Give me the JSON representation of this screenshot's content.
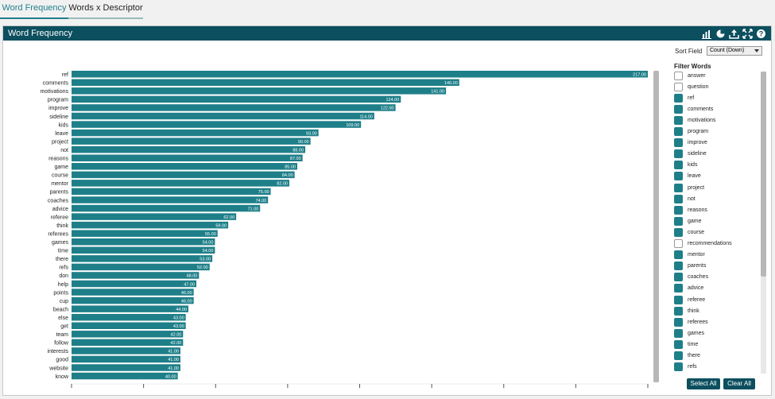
{
  "tabs": [
    {
      "label": "Word Frequency",
      "active": true
    },
    {
      "label": "Words x Descriptor",
      "active": false
    }
  ],
  "panel": {
    "title": "Word Frequency",
    "icons": [
      "bar-chart-icon",
      "pie-chart-icon",
      "export-icon",
      "expand-icon",
      "help-icon"
    ]
  },
  "sort": {
    "label": "Sort Field",
    "value": "Count (Down)"
  },
  "filter": {
    "title": "Filter Words",
    "items": [
      {
        "label": "answer",
        "checked": false
      },
      {
        "label": "question",
        "checked": false
      },
      {
        "label": "ref",
        "checked": true
      },
      {
        "label": "comments",
        "checked": true
      },
      {
        "label": "motivations",
        "checked": true
      },
      {
        "label": "program",
        "checked": true
      },
      {
        "label": "improve",
        "checked": true
      },
      {
        "label": "sideline",
        "checked": true
      },
      {
        "label": "kids",
        "checked": true
      },
      {
        "label": "leave",
        "checked": true
      },
      {
        "label": "project",
        "checked": true
      },
      {
        "label": "not",
        "checked": true
      },
      {
        "label": "reasons",
        "checked": true
      },
      {
        "label": "game",
        "checked": true
      },
      {
        "label": "course",
        "checked": true
      },
      {
        "label": "recommendations",
        "checked": false
      },
      {
        "label": "mentor",
        "checked": true
      },
      {
        "label": "parents",
        "checked": true
      },
      {
        "label": "coaches",
        "checked": true
      },
      {
        "label": "advice",
        "checked": true
      },
      {
        "label": "referee",
        "checked": true
      },
      {
        "label": "think",
        "checked": true
      },
      {
        "label": "referees",
        "checked": true
      },
      {
        "label": "games",
        "checked": true
      },
      {
        "label": "time",
        "checked": true
      },
      {
        "label": "there",
        "checked": true
      },
      {
        "label": "refs",
        "checked": true
      }
    ],
    "select_all": "Select All",
    "clear_all": "Clear All"
  },
  "colors": {
    "bar": "#1e7f89",
    "header": "#0c4f5f",
    "accent": "#1f7f8c"
  },
  "chart_data": {
    "type": "bar",
    "orientation": "horizontal",
    "title": "",
    "xlabel": "",
    "ylabel": "",
    "xlim": [
      0,
      217
    ],
    "categories": [
      "ref",
      "comments",
      "motivations",
      "program",
      "improve",
      "sideline",
      "kids",
      "leave",
      "project",
      "not",
      "reasons",
      "game",
      "course",
      "mentor",
      "parents",
      "coaches",
      "advice",
      "referee",
      "think",
      "referees",
      "games",
      "time",
      "there",
      "refs",
      "don",
      "help",
      "points",
      "cup",
      "beach",
      "else",
      "get",
      "team",
      "follow",
      "interests",
      "good",
      "website",
      "know"
    ],
    "values": [
      217,
      146,
      141,
      124,
      122,
      114,
      109,
      93,
      90,
      88,
      87,
      85,
      84,
      82,
      75,
      74,
      71,
      62,
      59,
      55,
      54,
      54,
      53,
      52,
      48,
      47,
      46,
      46,
      44,
      43,
      43,
      42,
      42,
      41,
      41,
      41,
      40
    ],
    "value_labels": [
      "217.00",
      "146.00",
      "141.00",
      "124.00",
      "122.00",
      "114.00",
      "109.00",
      "93.00",
      "90.00",
      "88.00",
      "87.00",
      "85.00",
      "84.00",
      "82.00",
      "75.00",
      "74.00",
      "71.00",
      "62.00",
      "59.00",
      "55.00",
      "54.00",
      "54.00",
      "53.00",
      "52.00",
      "48.00",
      "47.00",
      "46.00",
      "46.00",
      "44.00",
      "43.00",
      "43.00",
      "42.00",
      "42.00",
      "41.00",
      "41.00",
      "41.00",
      "40.00"
    ]
  }
}
